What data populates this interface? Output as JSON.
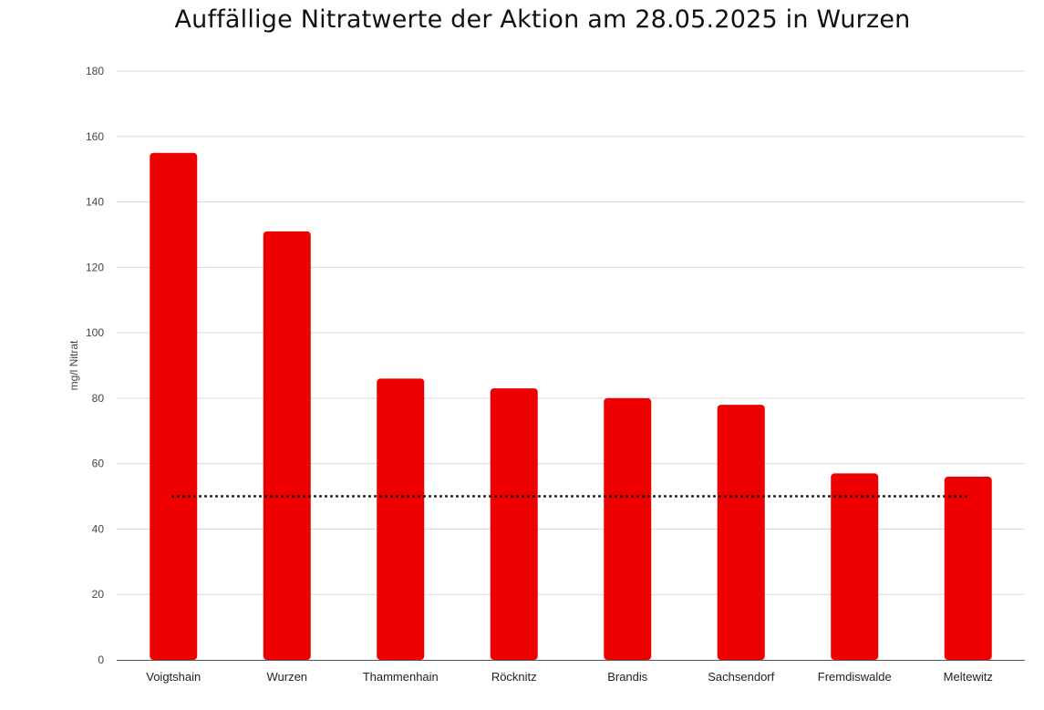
{
  "chart_data": {
    "type": "bar",
    "title": "Auffällige Nitratwerte der Aktion am 28.05.2025 in Wurzen",
    "ylabel": "mg/l Nitrat",
    "xlabel": "",
    "categories": [
      "Voigtshain",
      "Wurzen",
      "Thammenhain",
      "Röcknitz",
      "Brandis",
      "Sachsendorf",
      "Fremdiswalde",
      "Meltewitz"
    ],
    "values": [
      155,
      131,
      86,
      83,
      80,
      78,
      57,
      56
    ],
    "ylim": [
      0,
      180
    ],
    "yticks": [
      0,
      20,
      40,
      60,
      80,
      100,
      120,
      140,
      160,
      180
    ],
    "grid": true,
    "bar_color": "#ee0000",
    "reference_line": {
      "value": 50,
      "style": "dotted",
      "color": "#000000"
    }
  }
}
